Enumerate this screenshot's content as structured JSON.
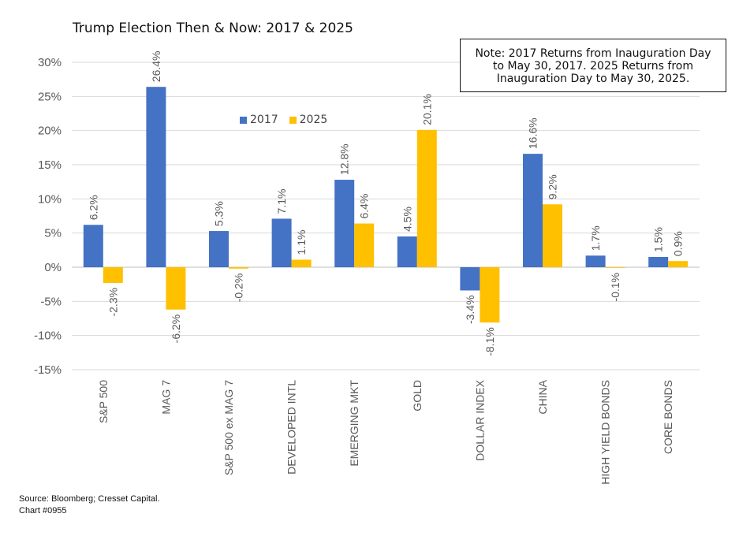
{
  "title": "Trump Election Then & Now: 2017 & 2025",
  "note": {
    "line1": "Note: 2017 Returns from Inauguration Day",
    "line2": "to May 30, 2017.  2025 Returns from",
    "line3": "Inauguration Day to May 30, 2025."
  },
  "source": {
    "line1": "Source: Bloomberg; Cresset Capital.",
    "line2": "Chart #0955"
  },
  "colors": {
    "s2017": "#4472C4",
    "s2025": "#FFC000",
    "grid": "#d9d9d9",
    "text": "#595959"
  },
  "chart_data": {
    "type": "bar",
    "categories": [
      "S&P 500",
      "MAG 7",
      "S&P 500 ex MAG 7",
      "DEVELOPED INTL",
      "EMERGING MKT",
      "GOLD",
      "DOLLAR INDEX",
      "CHINA",
      "HIGH YIELD BONDS",
      "CORE BONDS"
    ],
    "series": [
      {
        "name": "2017",
        "values": [
          6.2,
          26.4,
          5.3,
          7.1,
          12.8,
          4.5,
          -3.4,
          16.6,
          1.7,
          1.5
        ],
        "labels": [
          "6.2%",
          "26.4%",
          "5.3%",
          "7.1%",
          "12.8%",
          "4.5%",
          "-3.4%",
          "16.6%",
          "1.7%",
          "1.5%"
        ]
      },
      {
        "name": "2025",
        "values": [
          -2.3,
          -6.2,
          -0.2,
          1.1,
          6.4,
          20.1,
          -8.1,
          9.2,
          -0.1,
          0.9
        ],
        "labels": [
          "-2.3%",
          "-6.2%",
          "-0.2%",
          "1.1%",
          "6.4%",
          "20.1%",
          "-8.1%",
          "9.2%",
          "-0.1%",
          "0.9%"
        ]
      }
    ],
    "yticks": [
      30,
      25,
      20,
      15,
      10,
      5,
      0,
      -5,
      -10,
      -15
    ],
    "ytick_labels": [
      "30%",
      "25%",
      "20%",
      "15%",
      "10%",
      "5%",
      "0%",
      "-5%",
      "-10%",
      "-15%"
    ],
    "ylim": [
      -15,
      30
    ],
    "legend_position": "top-center",
    "grid": true
  }
}
